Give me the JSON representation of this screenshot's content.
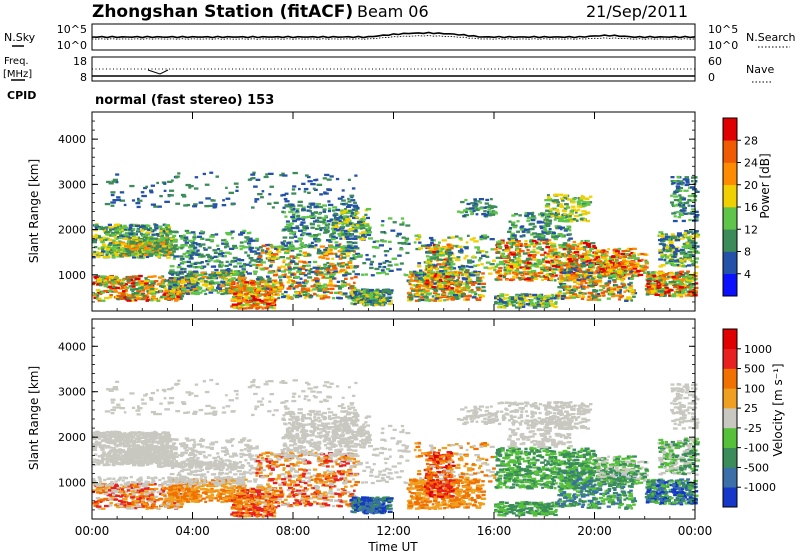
{
  "header": {
    "title": "Zhongshan Station (fitACF)",
    "beam": "Beam 06",
    "date": "21/Sep/2011"
  },
  "side_labels": {
    "nsky": "N.Sky",
    "freq_line1": "Freq.",
    "freq_line2": "[MHz]",
    "cpid": "CPID",
    "nsearch": "N.Search",
    "nave": "Nave"
  },
  "noise_panel": {
    "left_ticks": [
      "10^5",
      "10^0"
    ],
    "right_ticks": [
      "10^5",
      "10^0"
    ]
  },
  "freq_panel": {
    "left_ticks": [
      "18",
      "8"
    ],
    "right_ticks": [
      "60",
      "0"
    ]
  },
  "cpid_text": "normal (fast stereo) 153",
  "colors": {
    "power_scale": [
      "#0b10ff",
      "#2452a8",
      "#3c8c59",
      "#5fc54a",
      "#f0d000",
      "#ff8c00",
      "#f05a00",
      "#e00000"
    ],
    "velocity_scale": [
      "#1538c8",
      "#3a6fa8",
      "#3a8d5a",
      "#55c03a",
      "#c8c8c0",
      "#f0a020",
      "#f07000",
      "#e82020",
      "#e00000"
    ]
  },
  "chart_data": [
    {
      "type": "heatmap",
      "title": "",
      "xlabel": "Time UT",
      "ylabel": "Slant Range [km]",
      "x_ticks": [
        "00:00",
        "04:00",
        "08:00",
        "12:00",
        "16:00",
        "20:00",
        "00:00"
      ],
      "y_ticks": [
        "1000",
        "2000",
        "3000",
        "4000"
      ],
      "ylim": [
        200,
        4600
      ],
      "xlim_hours": [
        0,
        24
      ],
      "colorbar": {
        "label": "Power [dB]",
        "ticks": [
          "4",
          "8",
          "12",
          "16",
          "20",
          "24",
          "28"
        ],
        "range": [
          0,
          32
        ]
      }
    },
    {
      "type": "heatmap",
      "title": "",
      "xlabel": "Time UT",
      "ylabel": "Slant Range [km]",
      "x_ticks": [
        "00:00",
        "04:00",
        "08:00",
        "12:00",
        "16:00",
        "20:00",
        "00:00"
      ],
      "y_ticks": [
        "1000",
        "2000",
        "3000",
        "4000"
      ],
      "ylim": [
        200,
        4600
      ],
      "xlim_hours": [
        0,
        24
      ],
      "colorbar": {
        "label": "Velocity [m s⁻¹]",
        "ticks": [
          "1000",
          "500",
          "100",
          "25",
          "-25",
          "-100",
          "-500",
          "-1000"
        ]
      }
    }
  ]
}
